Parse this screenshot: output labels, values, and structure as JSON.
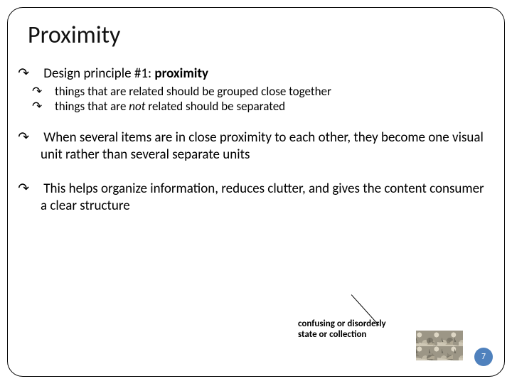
{
  "title": "Proximity",
  "bullets": {
    "b1_pre": "Design principle #1: ",
    "b1_bold": "proximity",
    "b1a": "things that are related should be grouped close together",
    "b1b_pre": "things that are ",
    "b1b_em": "not",
    "b1b_post": " related should be separated",
    "b2": "When several items are in close proximity to each other, they become one visual unit rather than several separate units",
    "b3": "This helps organize information, reduces clutter, and gives the content consumer a clear structure"
  },
  "annotation": {
    "line1": "confusing or disorderly",
    "line2": "state or collection"
  },
  "page_number": "7",
  "colors": {
    "page_badge_bg": "#4f81bd",
    "page_badge_fg": "#ffffff",
    "border": "#000000",
    "text": "#000000",
    "background": "#ffffff"
  },
  "bullet_char": "↷"
}
